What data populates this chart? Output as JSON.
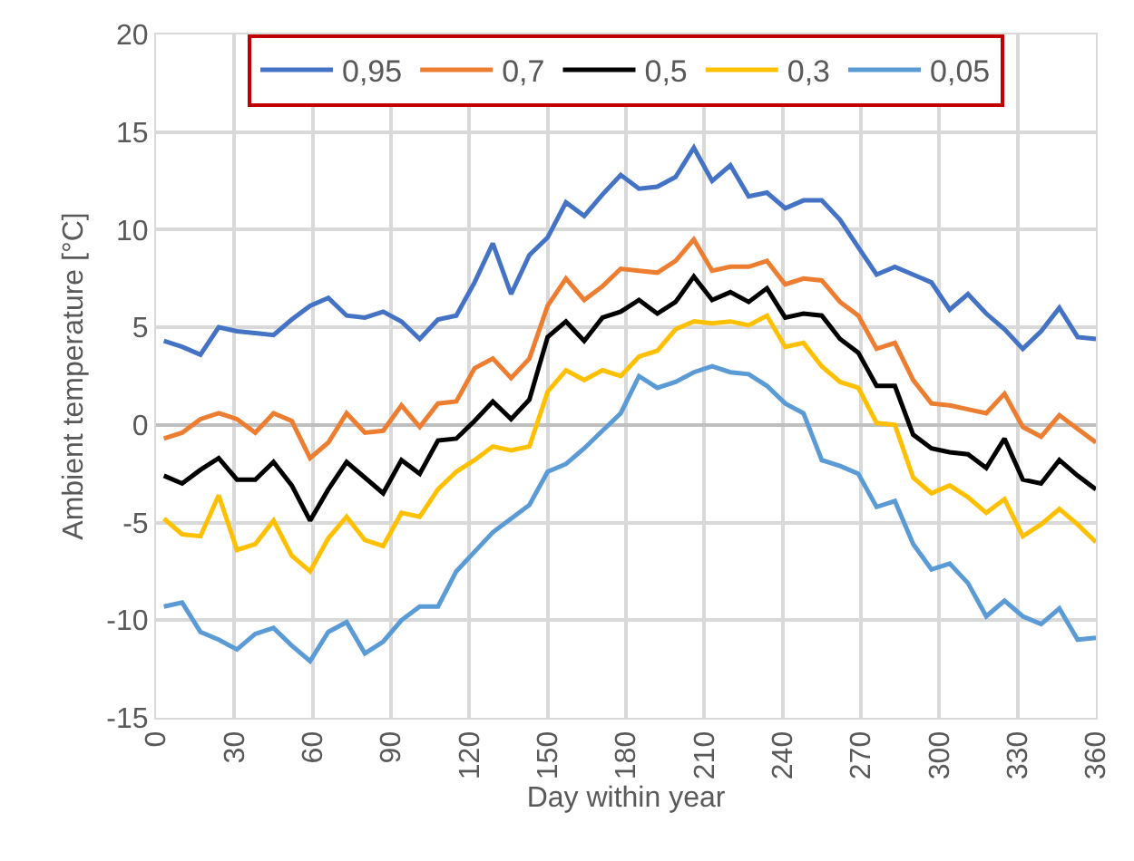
{
  "chart_data": {
    "type": "line",
    "xlabel": "Day within year",
    "ylabel": "Ambient temperature [°C]",
    "x": [
      3,
      10,
      17,
      24,
      31,
      38,
      45,
      52,
      59,
      66,
      73,
      80,
      87,
      94,
      101,
      108,
      115,
      122,
      129,
      136,
      143,
      150,
      157,
      164,
      171,
      178,
      185,
      192,
      199,
      206,
      213,
      220,
      227,
      234,
      241,
      248,
      255,
      262,
      269,
      276,
      283,
      290,
      297,
      304,
      311,
      318,
      325,
      332,
      339,
      346,
      353,
      360
    ],
    "series": [
      {
        "name": "0,95",
        "color": "#4472c4",
        "values": [
          4.3,
          4.0,
          3.6,
          5.0,
          4.8,
          4.7,
          4.6,
          5.4,
          6.1,
          6.5,
          5.6,
          5.5,
          5.8,
          5.3,
          4.4,
          5.4,
          5.6,
          7.3,
          9.3,
          6.7,
          8.7,
          9.6,
          11.4,
          10.7,
          11.8,
          12.8,
          12.1,
          12.2,
          12.7,
          14.2,
          12.5,
          13.3,
          11.7,
          11.9,
          11.1,
          11.5,
          11.5,
          10.5,
          9.1,
          7.7,
          8.1,
          7.7,
          7.3,
          5.9,
          6.7,
          5.7,
          4.9,
          3.9,
          4.8,
          6.0,
          4.5,
          4.4
        ]
      },
      {
        "name": "0,7",
        "color": "#ed7d31",
        "values": [
          -0.7,
          -0.4,
          0.3,
          0.6,
          0.3,
          -0.4,
          0.6,
          0.2,
          -1.7,
          -0.9,
          0.6,
          -0.4,
          -0.3,
          1.0,
          -0.1,
          1.1,
          1.2,
          2.9,
          3.4,
          2.4,
          3.4,
          6.1,
          7.5,
          6.4,
          7.1,
          8.0,
          7.9,
          7.8,
          8.4,
          9.5,
          7.9,
          8.1,
          8.1,
          8.4,
          7.2,
          7.5,
          7.4,
          6.3,
          5.6,
          3.9,
          4.2,
          2.3,
          1.1,
          1.0,
          0.8,
          0.6,
          1.6,
          -0.1,
          -0.6,
          0.5,
          -0.2,
          -0.9
        ]
      },
      {
        "name": "0,5",
        "color": "#000000",
        "values": [
          -2.6,
          -3.0,
          -2.3,
          -1.7,
          -2.8,
          -2.8,
          -1.9,
          -3.1,
          -4.9,
          -3.3,
          -1.9,
          -2.7,
          -3.5,
          -1.8,
          -2.5,
          -0.8,
          -0.7,
          0.2,
          1.2,
          0.3,
          1.3,
          4.5,
          5.3,
          4.3,
          5.5,
          5.8,
          6.4,
          5.7,
          6.3,
          7.6,
          6.4,
          6.8,
          6.3,
          7.0,
          5.5,
          5.7,
          5.6,
          4.4,
          3.7,
          2.0,
          2.0,
          -0.5,
          -1.2,
          -1.4,
          -1.5,
          -2.2,
          -0.7,
          -2.8,
          -3.0,
          -1.8,
          -2.6,
          -3.3
        ]
      },
      {
        "name": "0,3",
        "color": "#ffc000",
        "values": [
          -4.8,
          -5.6,
          -5.7,
          -3.6,
          -6.4,
          -6.1,
          -4.9,
          -6.7,
          -7.5,
          -5.8,
          -4.7,
          -5.9,
          -6.2,
          -4.5,
          -4.7,
          -3.3,
          -2.4,
          -1.8,
          -1.1,
          -1.3,
          -1.1,
          1.7,
          2.8,
          2.3,
          2.8,
          2.5,
          3.5,
          3.8,
          4.9,
          5.3,
          5.2,
          5.3,
          5.1,
          5.6,
          4.0,
          4.2,
          3.0,
          2.2,
          1.9,
          0.1,
          0.0,
          -2.7,
          -3.5,
          -3.1,
          -3.7,
          -4.5,
          -3.8,
          -5.7,
          -5.1,
          -4.3,
          -5.1,
          -6.0
        ]
      },
      {
        "name": "0,05",
        "color": "#5b9bd5",
        "values": [
          -9.3,
          -9.1,
          -10.6,
          -11.0,
          -11.5,
          -10.7,
          -10.4,
          -11.3,
          -12.1,
          -10.6,
          -10.1,
          -11.7,
          -11.1,
          -10.0,
          -9.3,
          -9.3,
          -7.5,
          -6.5,
          -5.5,
          -4.8,
          -4.1,
          -2.4,
          -2.0,
          -1.2,
          -0.3,
          0.6,
          2.5,
          1.9,
          2.2,
          2.7,
          3.0,
          2.7,
          2.6,
          2.0,
          1.1,
          0.6,
          -1.8,
          -2.1,
          -2.5,
          -4.2,
          -3.9,
          -6.1,
          -7.4,
          -7.1,
          -8.1,
          -9.8,
          -9.0,
          -9.8,
          -10.2,
          -9.4,
          -11.0,
          -10.9
        ]
      }
    ],
    "xlim": [
      0,
      360
    ],
    "xticks": [
      0,
      30,
      60,
      90,
      120,
      150,
      180,
      210,
      240,
      270,
      300,
      330,
      360
    ],
    "ylim": [
      -15,
      20
    ],
    "yticks": [
      -15,
      -10,
      -5,
      0,
      5,
      10,
      15,
      20
    ],
    "grid": true,
    "legend": "top",
    "marker": "none",
    "line_style": "solid"
  }
}
